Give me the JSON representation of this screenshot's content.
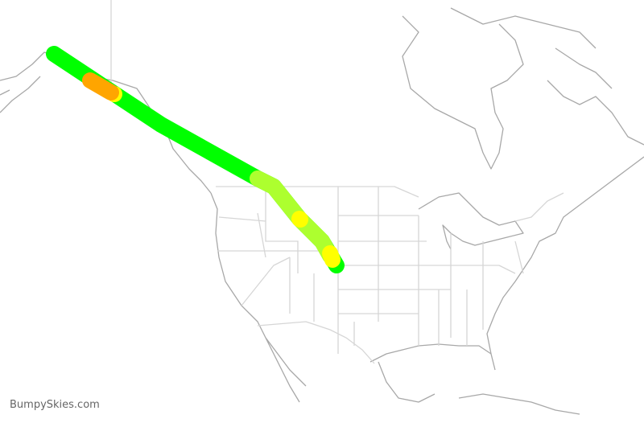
{
  "brand": "BumpySkies.com",
  "colors": {
    "smooth": "#00ff00",
    "light": "#adff2f",
    "moderate": "#ffff00",
    "strong": "#ffa500",
    "coastline": "#a8a8a8",
    "borders": "#d6d6d6"
  }
}
